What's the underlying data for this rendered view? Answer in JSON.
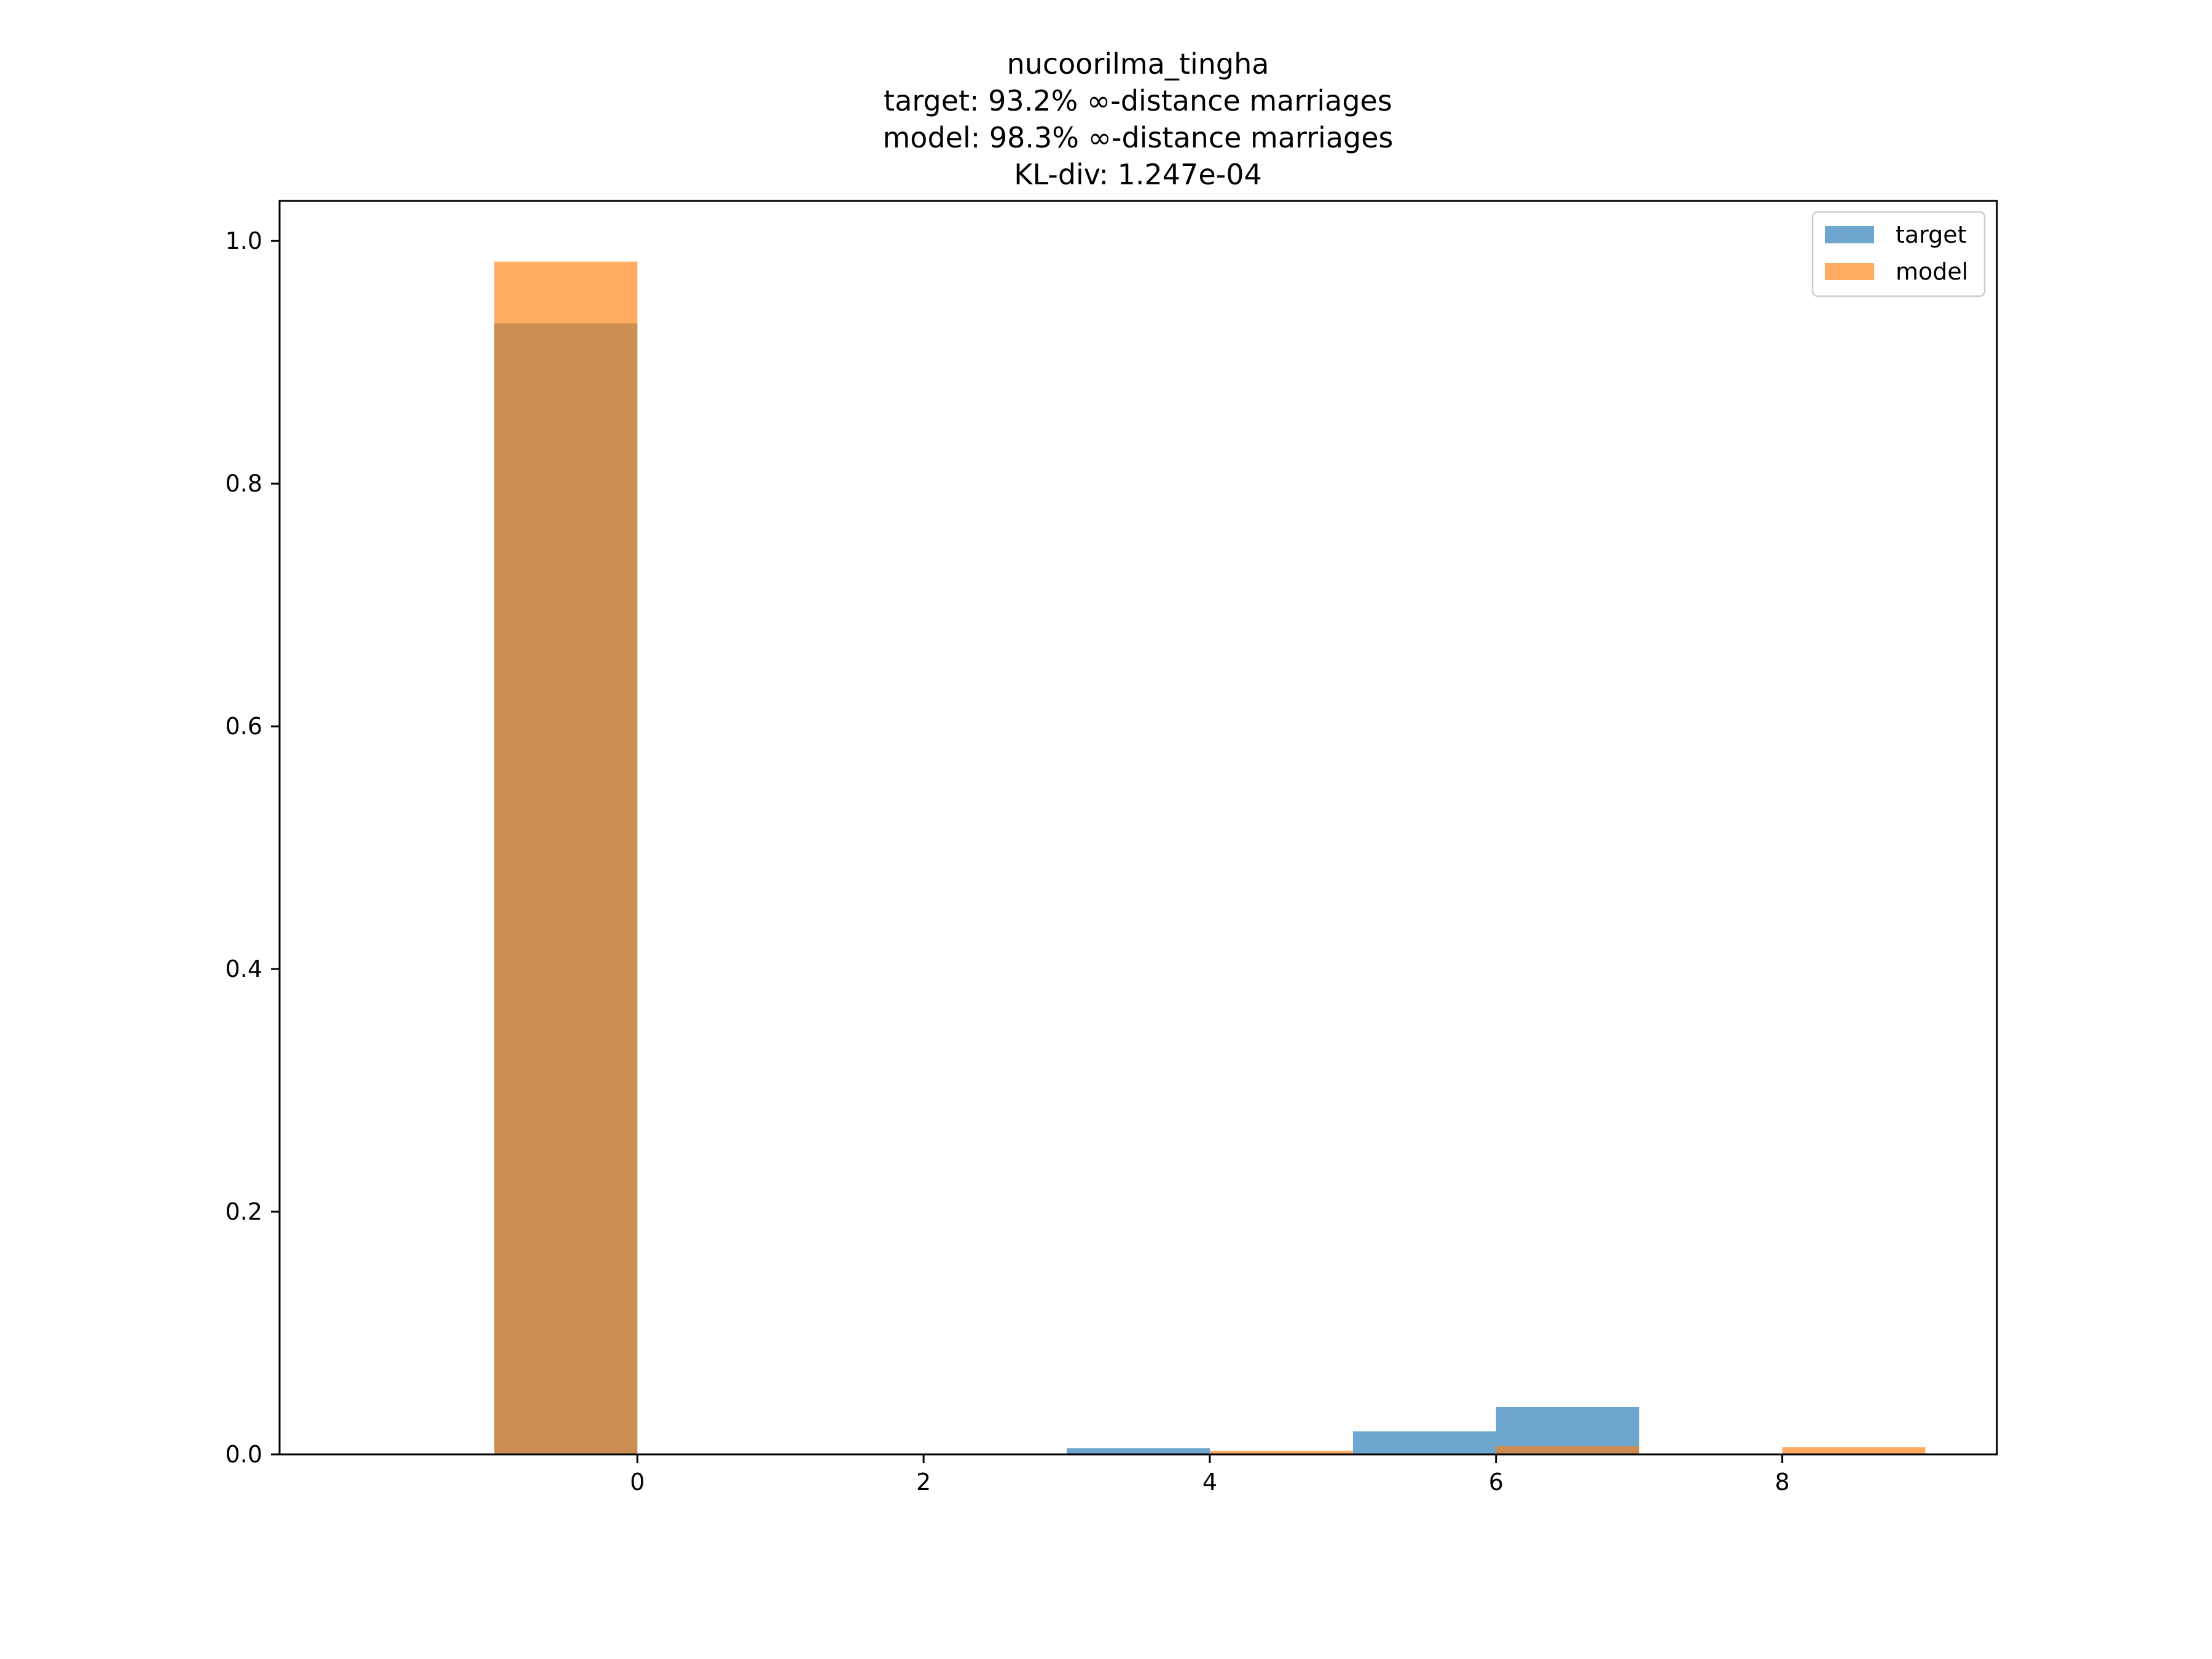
{
  "chart_data": {
    "type": "bar",
    "title_lines": [
      "nucoorilma_tingha",
      "target: 93.2% ∞-distance marriages",
      "model: 98.3% ∞-distance marriages",
      "KL-div: 1.247e-04"
    ],
    "xlabel": "",
    "ylabel": "",
    "xlim": [
      -2.5,
      9.5
    ],
    "ylim": [
      0,
      1.033
    ],
    "x_ticks": [
      0,
      2,
      4,
      6,
      8
    ],
    "x_tick_labels": [
      "0",
      "2",
      "4",
      "6",
      "8"
    ],
    "y_ticks": [
      0.0,
      0.2,
      0.4,
      0.6,
      0.8,
      1.0
    ],
    "y_tick_labels": [
      "0.0",
      "0.2",
      "0.4",
      "0.6",
      "0.8",
      "1.0"
    ],
    "bin_edges": [
      -1,
      0,
      1,
      2,
      3,
      4,
      5,
      6,
      7,
      8,
      9
    ],
    "series": [
      {
        "name": "target",
        "color": "#1f77b4",
        "opacity": 0.65,
        "values": [
          0.932,
          0.0,
          0.0,
          0.0,
          0.005,
          0.0,
          0.019,
          0.039,
          0.0,
          0.0
        ]
      },
      {
        "name": "model",
        "color": "#ff7f0e",
        "opacity": 0.65,
        "values": [
          0.983,
          0.0,
          0.0,
          0.0,
          0.0,
          0.003,
          0.0,
          0.007,
          0.0,
          0.006
        ]
      }
    ],
    "legend_position": "top-right",
    "grid": false
  }
}
